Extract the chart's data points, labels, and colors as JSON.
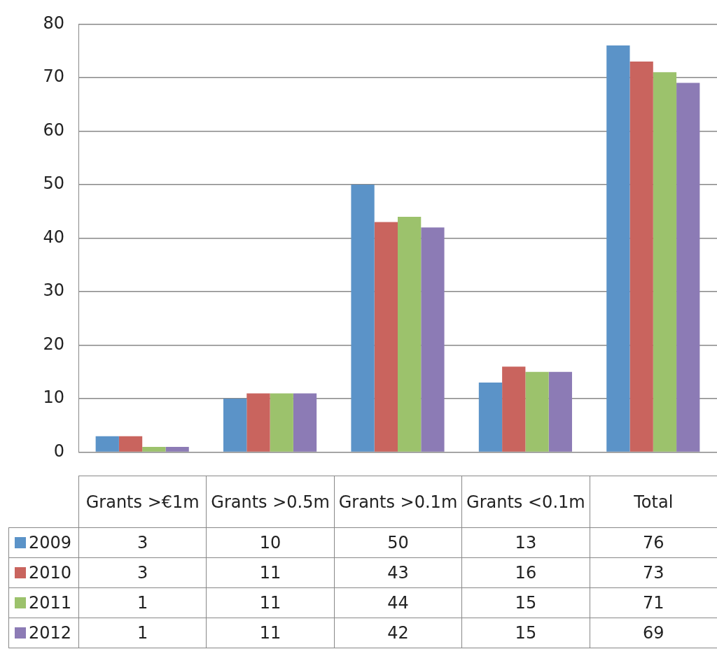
{
  "chart_data": {
    "type": "bar",
    "categories": [
      "Grants >€1m",
      "Grants >0.5m",
      "Grants >0.1m",
      "Grants <0.1m",
      "Total"
    ],
    "series": [
      {
        "name": "2009",
        "color": "#5b93c8",
        "values": [
          3,
          10,
          50,
          13,
          76
        ]
      },
      {
        "name": "2010",
        "color": "#c9645e",
        "values": [
          3,
          11,
          43,
          16,
          73
        ]
      },
      {
        "name": "2011",
        "color": "#9cc26c",
        "values": [
          1,
          11,
          44,
          15,
          71
        ]
      },
      {
        "name": "2012",
        "color": "#8c7bb5",
        "values": [
          1,
          11,
          42,
          15,
          69
        ]
      }
    ],
    "ylim": [
      0,
      80
    ],
    "yticks": [
      0,
      10,
      20,
      30,
      40,
      50,
      60,
      70,
      80
    ],
    "grid": "y",
    "legend": "bottom left",
    "data_labels": true
  }
}
